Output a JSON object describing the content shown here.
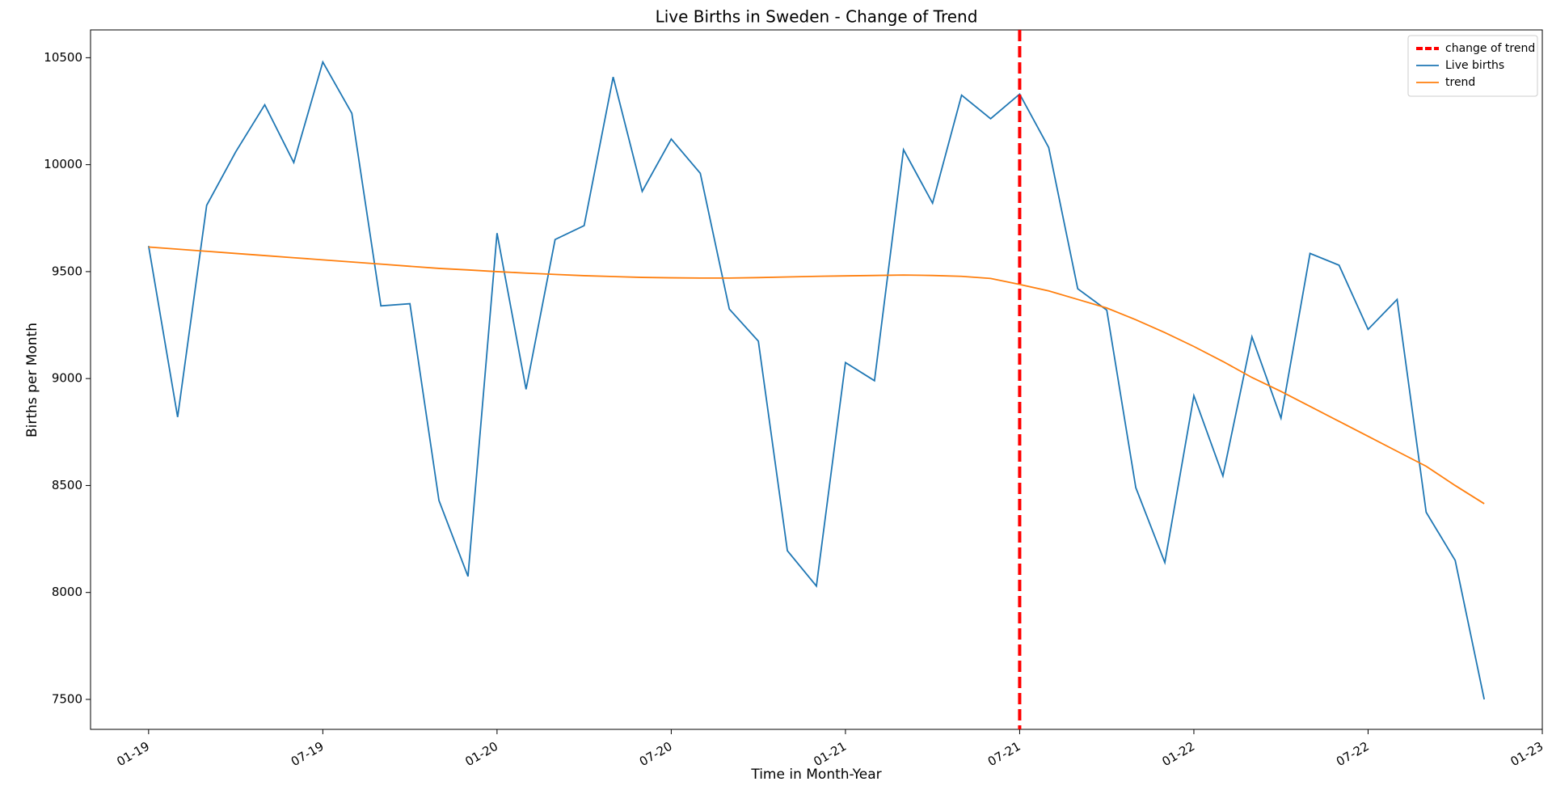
{
  "chart_data": {
    "type": "line",
    "title": "Live Births in Sweden - Change of Trend",
    "xlabel": "Time in Month-Year",
    "ylabel": "Births per Month",
    "x": [
      "2019-01",
      "2019-02",
      "2019-03",
      "2019-04",
      "2019-05",
      "2019-06",
      "2019-07",
      "2019-08",
      "2019-09",
      "2019-10",
      "2019-11",
      "2019-12",
      "2020-01",
      "2020-02",
      "2020-03",
      "2020-04",
      "2020-05",
      "2020-06",
      "2020-07",
      "2020-08",
      "2020-09",
      "2020-10",
      "2020-11",
      "2020-12",
      "2021-01",
      "2021-02",
      "2021-03",
      "2021-04",
      "2021-05",
      "2021-06",
      "2021-07",
      "2021-08",
      "2021-09",
      "2021-10",
      "2021-11",
      "2021-12",
      "2022-01",
      "2022-02",
      "2022-03",
      "2022-04",
      "2022-05",
      "2022-06",
      "2022-07",
      "2022-08",
      "2022-09",
      "2022-10",
      "2022-11"
    ],
    "series": [
      {
        "name": "Live births",
        "color": "#1f77b4",
        "values": [
          9620,
          8820,
          9810,
          10060,
          10280,
          10010,
          10480,
          10240,
          9340,
          9350,
          8430,
          8075,
          9680,
          8950,
          9650,
          9715,
          10410,
          9875,
          10120,
          9960,
          9325,
          9175,
          8195,
          8030,
          9075,
          8990,
          10070,
          9820,
          10325,
          10215,
          10330,
          10080,
          9420,
          9320,
          8490,
          8140,
          8920,
          8545,
          9195,
          8815,
          9585,
          9530,
          9230,
          9370,
          8375,
          8150,
          7500
        ]
      },
      {
        "name": "trend",
        "color": "#ff7f0e",
        "values": [
          9615,
          9605,
          9595,
          9585,
          9575,
          9565,
          9555,
          9545,
          9535,
          9525,
          9515,
          9508,
          9500,
          9493,
          9487,
          9481,
          9477,
          9473,
          9471,
          9470,
          9470,
          9472,
          9475,
          9478,
          9480,
          9482,
          9484,
          9482,
          9478,
          9468,
          9440,
          9410,
          9370,
          9330,
          9275,
          9215,
          9150,
          9080,
          9005,
          8940,
          8870,
          8800,
          8730,
          8660,
          8590,
          8500,
          8415
        ]
      }
    ],
    "vline": {
      "name": "change of trend",
      "x": "2021-07",
      "color": "#ff0000"
    },
    "xlim": [
      "2018-11",
      "2023-01"
    ],
    "xticks": [
      {
        "value": "2019-01",
        "label": "01-19"
      },
      {
        "value": "2019-07",
        "label": "07-19"
      },
      {
        "value": "2020-01",
        "label": "01-20"
      },
      {
        "value": "2020-07",
        "label": "07-20"
      },
      {
        "value": "2021-01",
        "label": "01-21"
      },
      {
        "value": "2021-07",
        "label": "07-21"
      },
      {
        "value": "2022-01",
        "label": "01-22"
      },
      {
        "value": "2022-07",
        "label": "07-22"
      },
      {
        "value": "2023-01",
        "label": "01-23"
      }
    ],
    "ylim": [
      7360,
      10630
    ],
    "yticks": [
      7500,
      8000,
      8500,
      9000,
      9500,
      10000,
      10500
    ],
    "legend": "upper right"
  }
}
